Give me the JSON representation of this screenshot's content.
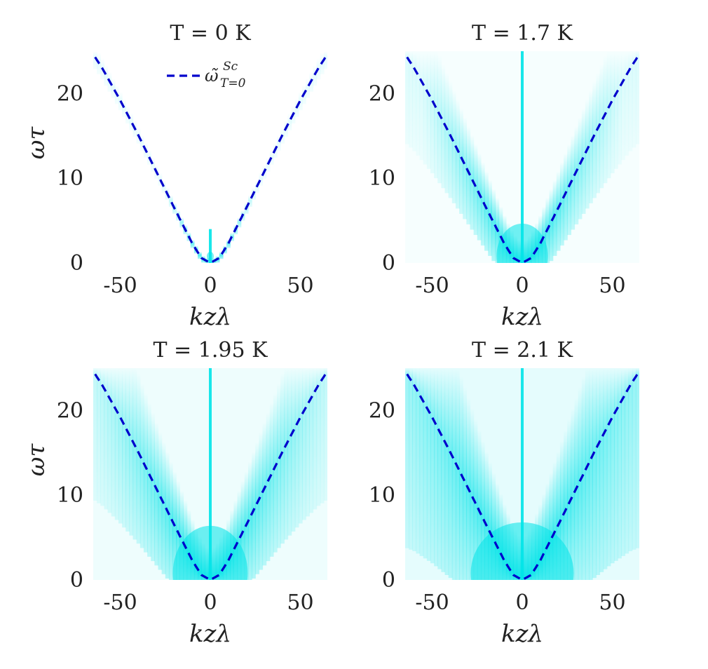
{
  "colors": {
    "dispersion_line": "#0000cc",
    "spectral_density": "#00e4e8",
    "text": "#222222"
  },
  "legend": {
    "label": "ω̃ᶜᴺ",
    "label_main": "ω̃",
    "label_sup": "Sc",
    "label_sub": "T=0"
  },
  "chart_data": [
    {
      "type": "heatmap",
      "title": "T = 0 K",
      "xlabel": "kzλ",
      "ylabel": "ωτ",
      "xlim": [
        -65,
        65
      ],
      "ylim": [
        0,
        25
      ],
      "xticks": [
        -50,
        0,
        50
      ],
      "yticks": [
        0,
        10,
        20
      ],
      "xtick_labels": [
        "-50",
        "0",
        "50"
      ],
      "ytick_labels": [
        "0",
        "10",
        "20"
      ],
      "grid": false,
      "legend_position": "top-center",
      "spectral_width_scale": 1.5,
      "central_spike_height": 4,
      "series": [
        {
          "name": "ω̃ Sc T=0",
          "x": [
            -64,
            -60,
            -50,
            -40,
            -30,
            -20,
            -10,
            -5,
            0,
            5,
            10,
            20,
            30,
            40,
            50,
            60,
            64
          ],
          "y": [
            24.3,
            23.0,
            19.2,
            15.1,
            10.8,
            6.5,
            2.3,
            0.6,
            0,
            0.6,
            2.3,
            6.5,
            10.8,
            15.1,
            19.2,
            23.0,
            24.3
          ]
        }
      ]
    },
    {
      "type": "heatmap",
      "title": "T = 1.7 K",
      "xlabel": "kzλ",
      "ylabel": "",
      "xlim": [
        -65,
        65
      ],
      "ylim": [
        0,
        25
      ],
      "xticks": [
        -50,
        0,
        50
      ],
      "yticks": [
        0,
        10,
        20
      ],
      "xtick_labels": [
        "-50",
        "0",
        "50"
      ],
      "ytick_labels": [
        "0",
        "10",
        "20"
      ],
      "grid": false,
      "spectral_width_scale": 11,
      "central_spike_height": 25,
      "series": [
        {
          "name": "ω̃ Sc T=0",
          "x": [
            -64,
            -60,
            -50,
            -40,
            -30,
            -20,
            -10,
            -5,
            0,
            5,
            10,
            20,
            30,
            40,
            50,
            60,
            64
          ],
          "y": [
            24.3,
            23.0,
            19.2,
            15.1,
            10.8,
            6.5,
            2.3,
            0.6,
            0,
            0.6,
            2.3,
            6.5,
            10.8,
            15.1,
            19.2,
            23.0,
            24.3
          ]
        }
      ]
    },
    {
      "type": "heatmap",
      "title": "T = 1.95 K",
      "xlabel": "kzλ",
      "ylabel": "ωτ",
      "xlim": [
        -65,
        65
      ],
      "ylim": [
        0,
        25
      ],
      "xticks": [
        -50,
        0,
        50
      ],
      "yticks": [
        0,
        10,
        20
      ],
      "xtick_labels": [
        "-50",
        "0",
        "50"
      ],
      "ytick_labels": [
        "0",
        "10",
        "20"
      ],
      "grid": false,
      "spectral_width_scale": 16,
      "central_spike_height": 25,
      "series": [
        {
          "name": "ω̃ Sc T=0",
          "x": [
            -64,
            -60,
            -50,
            -40,
            -30,
            -20,
            -10,
            -5,
            0,
            5,
            10,
            20,
            30,
            40,
            50,
            60,
            64
          ],
          "y": [
            24.3,
            23.0,
            19.2,
            15.1,
            10.8,
            6.5,
            2.3,
            0.6,
            0,
            0.6,
            2.3,
            6.5,
            10.8,
            15.1,
            19.2,
            23.0,
            24.3
          ]
        }
      ]
    },
    {
      "type": "heatmap",
      "title": "T = 2.1 K",
      "xlabel": "kzλ",
      "ylabel": "",
      "xlim": [
        -65,
        65
      ],
      "ylim": [
        0,
        25
      ],
      "xticks": [
        -50,
        0,
        50
      ],
      "yticks": [
        0,
        10,
        20
      ],
      "xtick_labels": [
        "-50",
        "0",
        "50"
      ],
      "ytick_labels": [
        "0",
        "10",
        "20"
      ],
      "grid": false,
      "spectral_width_scale": 22,
      "central_spike_height": 25,
      "series": [
        {
          "name": "ω̃ Sc T=0",
          "x": [
            -64,
            -60,
            -50,
            -40,
            -30,
            -20,
            -10,
            -5,
            0,
            5,
            10,
            20,
            30,
            40,
            50,
            60,
            64
          ],
          "y": [
            24.3,
            23.0,
            19.2,
            15.1,
            10.8,
            6.5,
            2.3,
            0.6,
            0,
            0.6,
            2.3,
            6.5,
            10.8,
            15.1,
            19.2,
            23.0,
            24.3
          ]
        }
      ]
    }
  ]
}
